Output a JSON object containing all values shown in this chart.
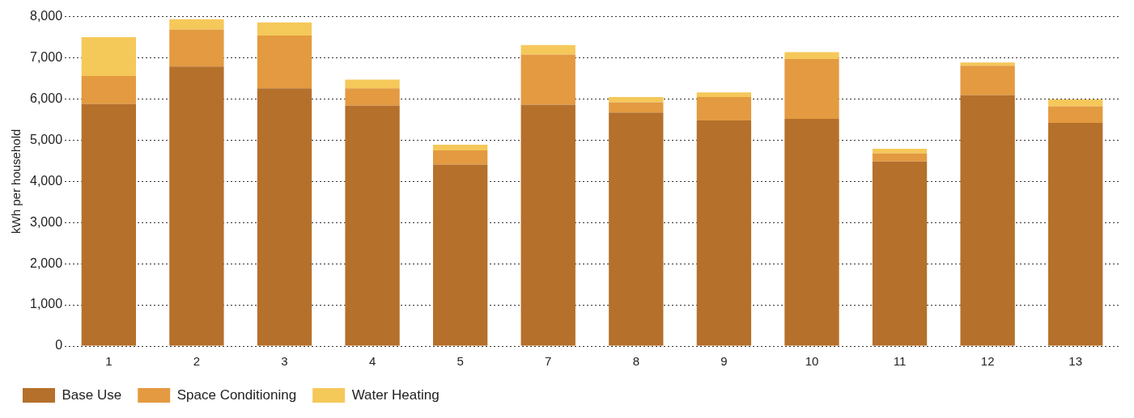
{
  "chart_data": {
    "type": "bar",
    "stacked": true,
    "ylabel": "kWh per household",
    "categories": [
      "1",
      "2",
      "3",
      "4",
      "5",
      "7",
      "8",
      "9",
      "10",
      "11",
      "12",
      "13"
    ],
    "series": [
      {
        "name": "Base Use",
        "color": "#b5702b",
        "values": [
          5880,
          6790,
          6260,
          5840,
          4410,
          5860,
          5670,
          5480,
          5520,
          4480,
          6090,
          5420
        ]
      },
      {
        "name": "Space Conditioning",
        "color": "#e39a40",
        "values": [
          680,
          900,
          1280,
          420,
          340,
          1220,
          250,
          570,
          1450,
          200,
          720,
          400
        ]
      },
      {
        "name": "Water Heating",
        "color": "#f5c85a",
        "values": [
          940,
          250,
          320,
          210,
          140,
          230,
          130,
          110,
          170,
          110,
          80,
          170
        ]
      }
    ],
    "ylim": [
      0,
      8000
    ],
    "yticks": [
      {
        "value": 0,
        "label": "0"
      },
      {
        "value": 1000,
        "label": "1,000"
      },
      {
        "value": 2000,
        "label": "2,000"
      },
      {
        "value": 3000,
        "label": "3,000"
      },
      {
        "value": 4000,
        "label": "4,000"
      },
      {
        "value": 5000,
        "label": "5,000"
      },
      {
        "value": 6000,
        "label": "6,000"
      },
      {
        "value": 7000,
        "label": "7,000"
      },
      {
        "value": 8000,
        "label": "8,000"
      }
    ],
    "grid": "y",
    "legend": "bottom left"
  }
}
